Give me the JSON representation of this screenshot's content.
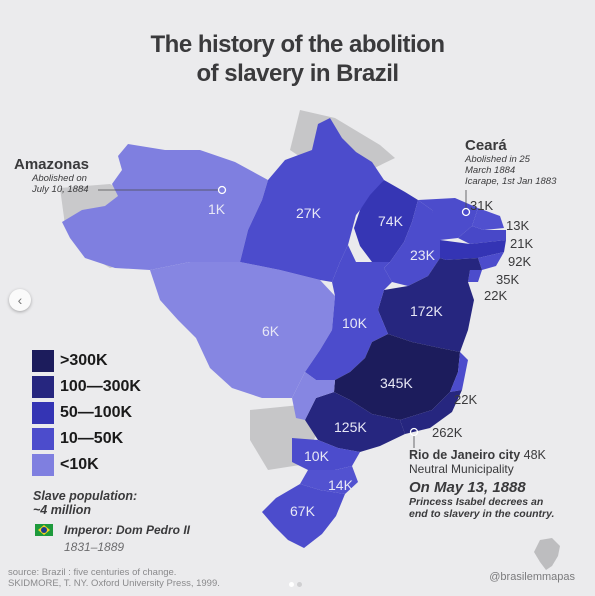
{
  "title": {
    "line1": "The history of the abolition",
    "line2": "of slavery in Brazil"
  },
  "annotations": {
    "amazonas": {
      "name": "Amazonas",
      "line1": "Abolished on",
      "line2": "July 10, 1884"
    },
    "ceara": {
      "name": "Ceará",
      "line1": "Abolished in 25",
      "line2": "March 1884",
      "line3": "Icarape, 1st Jan 1883"
    },
    "rio": {
      "name": "Rio de Janeiro city",
      "value": "48K",
      "sub": "Neutral Municipality"
    },
    "may13": {
      "date": "On May 13, 1888",
      "line1": "Princess Isabel decrees an",
      "line2": "end to slavery in the country."
    }
  },
  "regions": {
    "amazonas": "1K",
    "para": "27K",
    "maranhao": "74K",
    "ceara": "31K",
    "rn": "13K",
    "paraiba": "21K",
    "pernambuco": "92K",
    "alagoas": "35K",
    "sergipe": "22K",
    "piaui": "23K",
    "bahia": "172K",
    "matogrosso": "6K",
    "goias": "10K",
    "minas": "345K",
    "espiritosanto": "22K",
    "riodejaneiro": "262K",
    "saopaulo": "125K",
    "parana": "10K",
    "santacatarina": "14K",
    "riograndedosul": "67K"
  },
  "legend": [
    {
      "label": ">300K",
      "color": "#1c1c5c"
    },
    {
      "label": "100—300K",
      "color": "#26267f"
    },
    {
      "label": "50—100K",
      "color": "#3434b4"
    },
    {
      "label": "10—50K",
      "color": "#4c4ccc"
    },
    {
      "label": "<10K",
      "color": "#7f7fe0"
    }
  ],
  "population": {
    "line1": "Slave population:",
    "line2": "~4 million"
  },
  "emperor": {
    "name": "Imperor: Dom Pedro II",
    "years": "1831–1889"
  },
  "source": {
    "line1": "source: Brazil : five centuries of change.",
    "line2": "SKIDMORE, T. NY. Oxford University Press, 1999."
  },
  "handle": "@brasilemmapas",
  "colors": {
    "background": "#ebebed",
    "foreign": "#c8c8ca",
    "lt10k": "#7f7fe0",
    "r10to50k": "#4c4ccc",
    "r50to100k": "#3434b4",
    "r100to300k": "#26267f",
    "gt300k": "#1c1c5c"
  }
}
